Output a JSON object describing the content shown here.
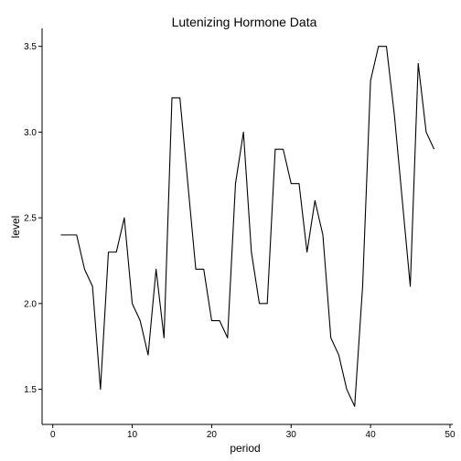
{
  "chart_data": {
    "type": "line",
    "title": "Lutenizing Hormone Data",
    "xlabel": "period",
    "ylabel": "level",
    "xlim": [
      -1.35,
      50.35
    ],
    "ylim": [
      1.295,
      3.605
    ],
    "x_ticks": [
      0,
      10,
      20,
      30,
      40,
      50
    ],
    "x_tick_labels": [
      "0",
      "10",
      "20",
      "30",
      "40",
      "50"
    ],
    "y_ticks": [
      1.5,
      2.0,
      2.5,
      3.0,
      3.5
    ],
    "y_tick_labels": [
      "1.5",
      "2.0",
      "2.5",
      "3.0",
      "3.5"
    ],
    "grid": false,
    "legend": "none",
    "line_color": "#000000",
    "series": [
      {
        "x": [
          1,
          2,
          3,
          4,
          5,
          6,
          7,
          8,
          9,
          10,
          11,
          12,
          13,
          14,
          15,
          16,
          17,
          18,
          19,
          20,
          21,
          22,
          23,
          24,
          25,
          26,
          27,
          28,
          29,
          30,
          31,
          32,
          33,
          34,
          35,
          36,
          37,
          38,
          39,
          40,
          41,
          42,
          43,
          44,
          45,
          46,
          47,
          48
        ],
        "values": [
          2.4,
          2.4,
          2.4,
          2.2,
          2.1,
          1.5,
          2.3,
          2.3,
          2.5,
          2.0,
          1.9,
          1.7,
          2.2,
          1.8,
          3.2,
          3.2,
          2.7,
          2.2,
          2.2,
          1.9,
          1.9,
          1.8,
          2.7,
          3.0,
          2.3,
          2.0,
          2.0,
          2.9,
          2.9,
          2.7,
          2.7,
          2.3,
          2.6,
          2.4,
          1.8,
          1.7,
          1.5,
          1.4,
          2.1,
          3.3,
          3.5,
          3.5,
          3.1,
          2.6,
          2.1,
          3.4,
          3.0,
          2.9
        ]
      }
    ]
  }
}
